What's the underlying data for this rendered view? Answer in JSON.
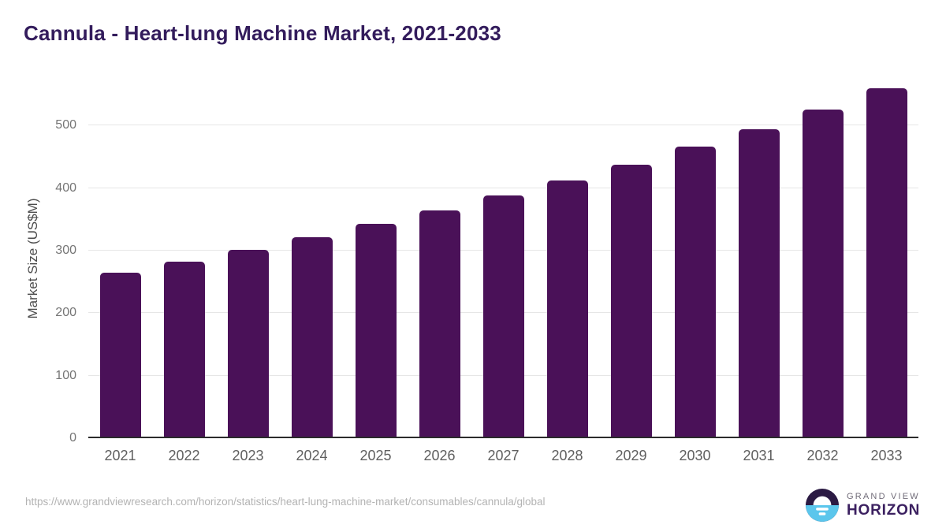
{
  "page": {
    "title": "Cannula - Heart-lung Machine Market, 2021-2033",
    "source_url": "https://www.grandviewresearch.com/horizon/statistics/heart-lung-machine-market/consumables/cannula/global"
  },
  "logo": {
    "brand_top": "GRAND VIEW",
    "brand_bottom": "HORIZON"
  },
  "colors": {
    "bar": "#4a1158",
    "title": "#331c5c",
    "axis": "#2b2b2b",
    "grid": "#e6e6e6",
    "tick_label": "#757575",
    "x_label": "#5f5f5f",
    "y_axis_label": "#4c4c4c",
    "url": "#b3b3b3",
    "logo_blue": "#5bc6ec",
    "logo_dark": "#2b1a43",
    "brand_top": "#716c79",
    "brand_bottom": "#3b2060"
  },
  "chart_data": {
    "type": "bar",
    "title": "Cannula - Heart-lung Machine Market, 2021-2033",
    "categories": [
      "2021",
      "2022",
      "2023",
      "2024",
      "2025",
      "2026",
      "2027",
      "2028",
      "2029",
      "2030",
      "2031",
      "2032",
      "2033"
    ],
    "values": [
      265,
      283,
      302,
      322,
      343,
      364,
      388,
      412,
      438,
      466,
      494,
      526,
      560
    ],
    "xlabel": "",
    "ylabel": "Market Size (US$M)",
    "yticks": [
      0,
      100,
      200,
      300,
      400,
      500
    ],
    "ylim": [
      0,
      575
    ],
    "grid": true,
    "legend": false,
    "bar_color": "#4a1158"
  }
}
